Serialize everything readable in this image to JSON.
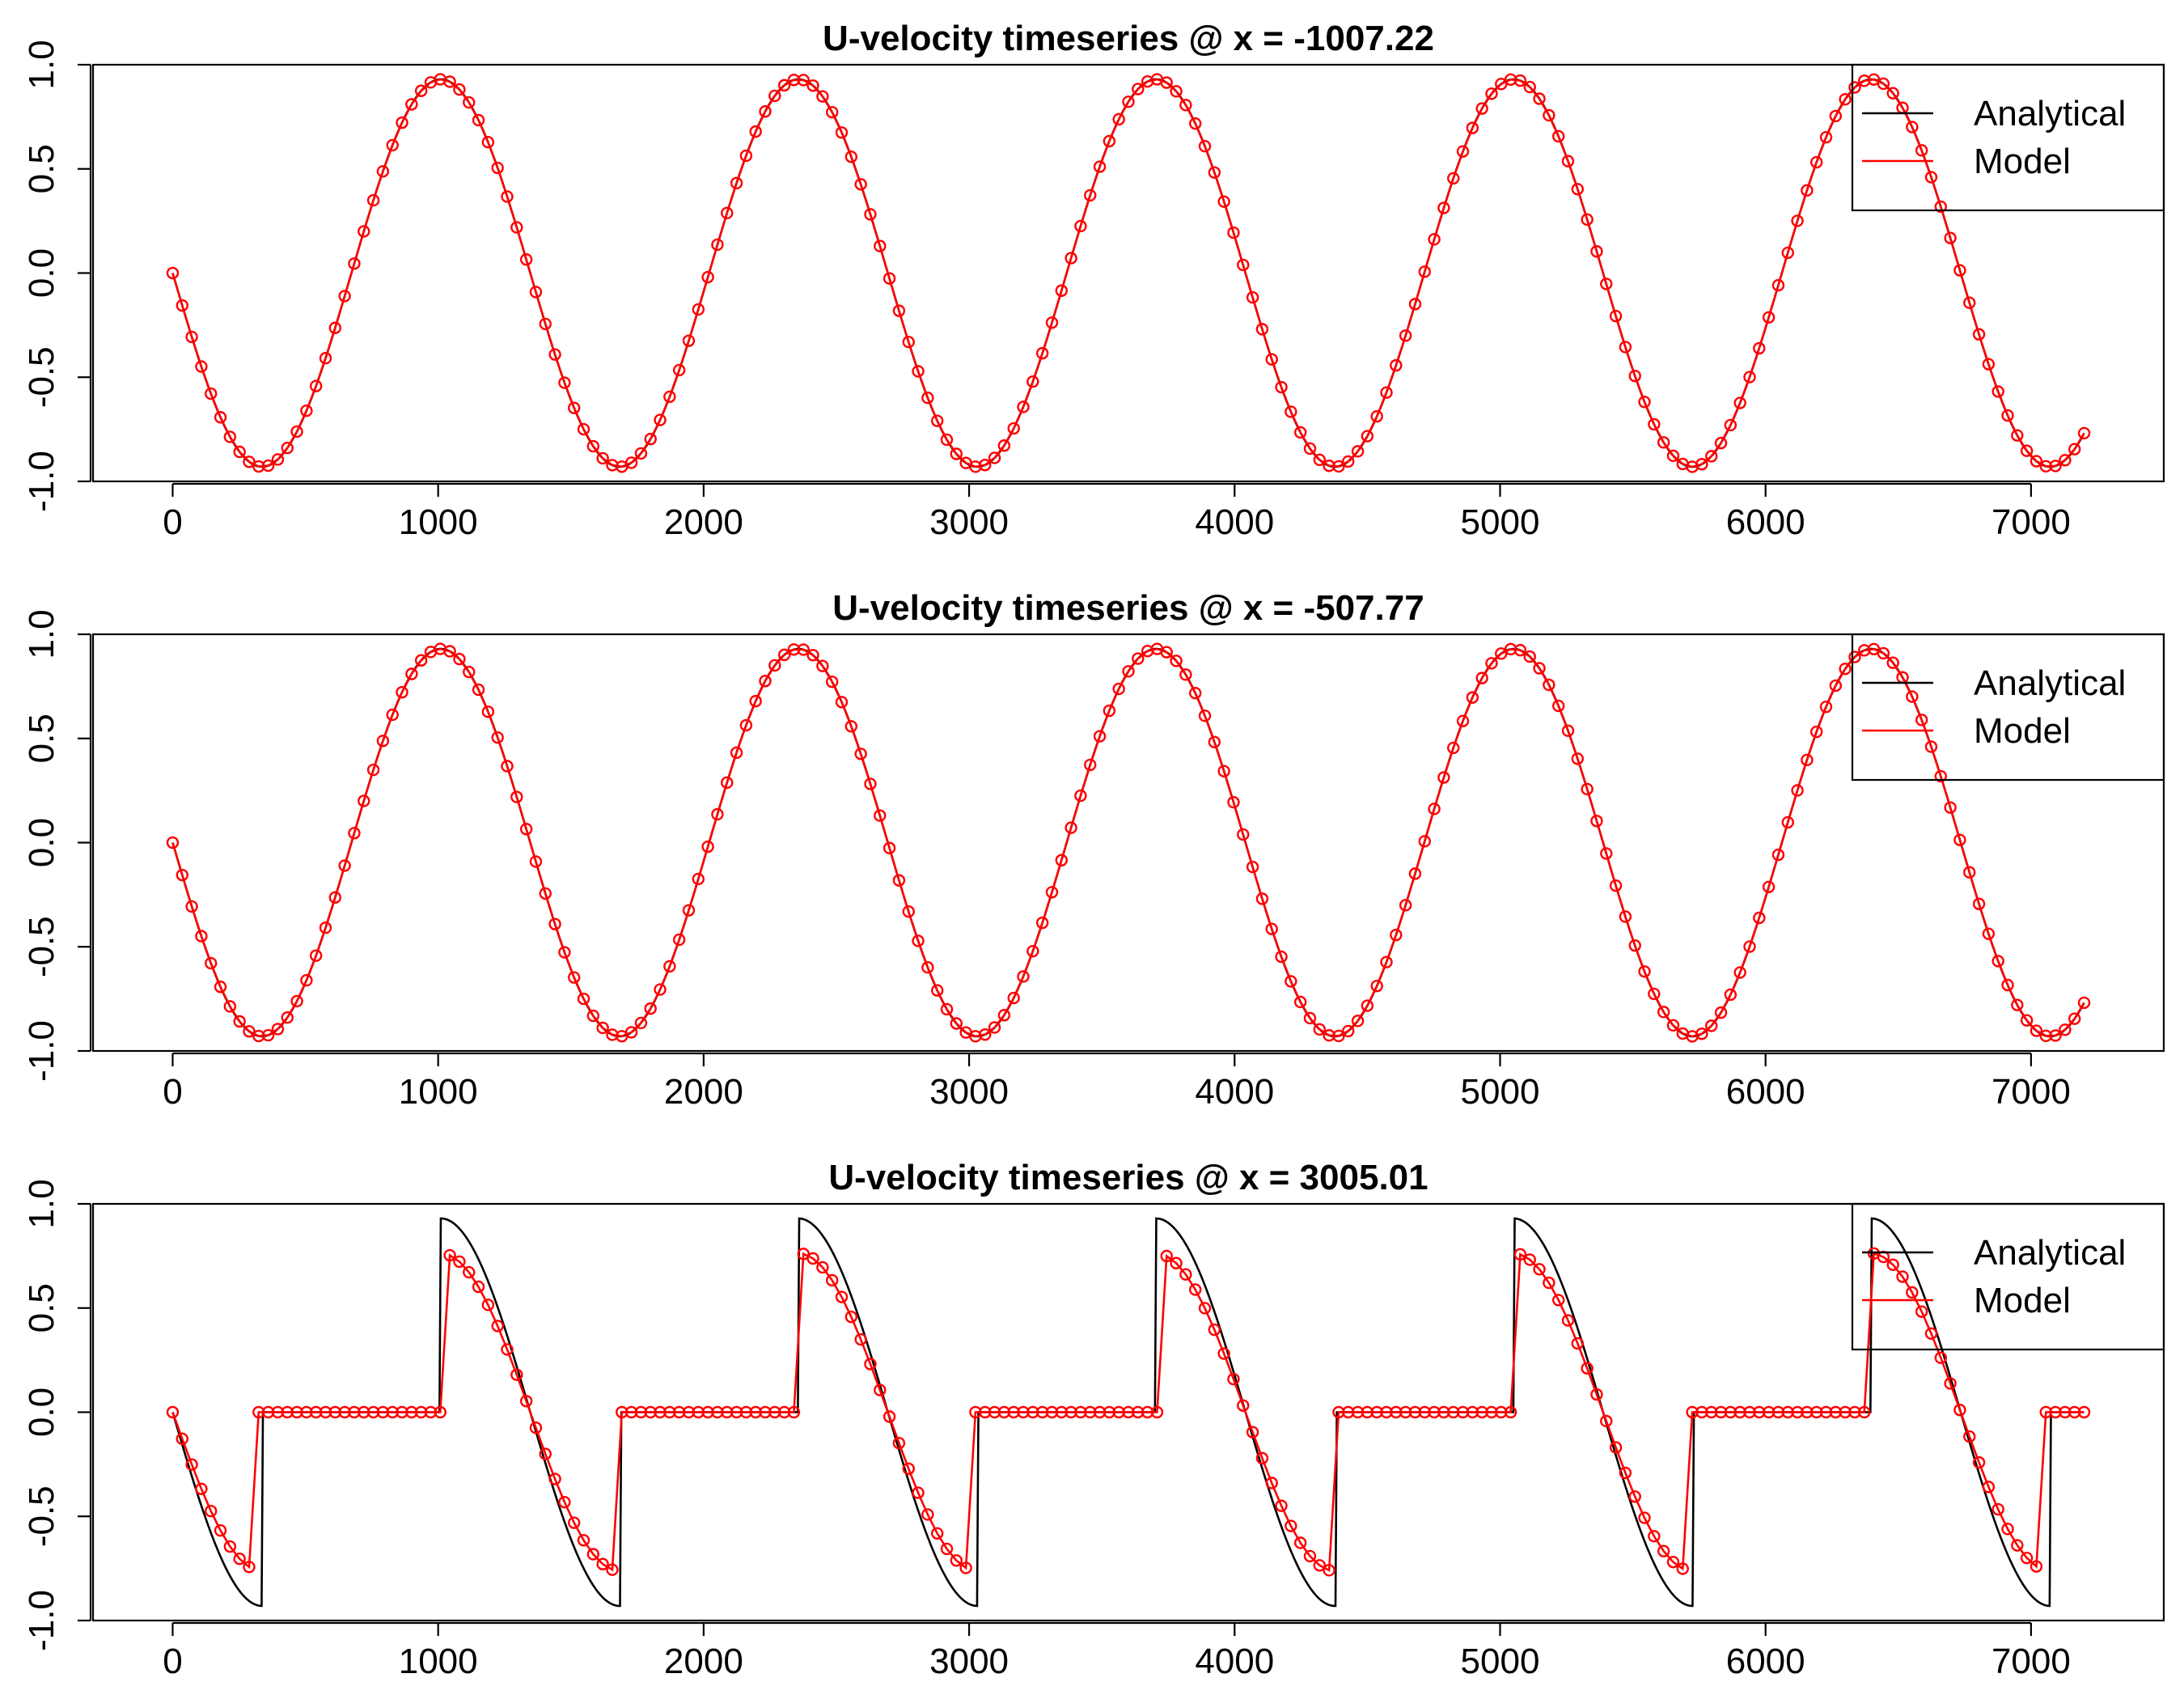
{
  "chart_data": [
    {
      "type": "line",
      "title": "U-velocity timeseries @ x = -1007.22",
      "x_ticks": [
        0,
        1000,
        2000,
        3000,
        4000,
        5000,
        6000,
        7000
      ],
      "y_ticks": [
        -1.0,
        -0.5,
        0.0,
        0.5,
        1.0
      ],
      "x_tick_labels": [
        "0",
        "1000",
        "2000",
        "3000",
        "4000",
        "5000",
        "6000",
        "7000"
      ],
      "y_tick_labels": [
        "-1.0",
        "-0.5",
        "0.0",
        "0.5",
        "1.0"
      ],
      "xlim": [
        -300,
        7500
      ],
      "ylim": [
        -1.0,
        1.0
      ],
      "legend": {
        "position": "top-right",
        "entries": [
          "Analytical",
          "Model"
        ]
      },
      "series": [
        {
          "name": "Analytical",
          "color": "#000000",
          "style": "line",
          "generator": {
            "kind": "sine",
            "amplitude": -0.93,
            "period": 1347,
            "x_start": 0,
            "x_end": 7200,
            "step": 5
          }
        },
        {
          "name": "Model",
          "color": "#ff0000",
          "style": "line+points",
          "generator": {
            "kind": "sine",
            "amplitude": -0.93,
            "period": 1347,
            "x_start": 0,
            "x_end": 7200,
            "step": 36
          }
        }
      ]
    },
    {
      "type": "line",
      "title": "U-velocity timeseries @ x = -507.77",
      "x_ticks": [
        0,
        1000,
        2000,
        3000,
        4000,
        5000,
        6000,
        7000
      ],
      "y_ticks": [
        -1.0,
        -0.5,
        0.0,
        0.5,
        1.0
      ],
      "x_tick_labels": [
        "0",
        "1000",
        "2000",
        "3000",
        "4000",
        "5000",
        "6000",
        "7000"
      ],
      "y_tick_labels": [
        "-1.0",
        "-0.5",
        "0.0",
        "0.5",
        "1.0"
      ],
      "xlim": [
        -300,
        7500
      ],
      "ylim": [
        -1.0,
        1.0
      ],
      "legend": {
        "position": "top-right",
        "entries": [
          "Analytical",
          "Model"
        ]
      },
      "series": [
        {
          "name": "Analytical",
          "color": "#000000",
          "style": "line",
          "generator": {
            "kind": "sine",
            "amplitude": -0.93,
            "period": 1347,
            "x_start": 0,
            "x_end": 7200,
            "step": 5
          }
        },
        {
          "name": "Model",
          "color": "#ff0000",
          "style": "line+points",
          "generator": {
            "kind": "sine",
            "amplitude": -0.93,
            "period": 1347,
            "x_start": 0,
            "x_end": 7200,
            "step": 36
          }
        }
      ]
    },
    {
      "type": "line",
      "title": "U-velocity timeseries @ x = 3005.01",
      "x_ticks": [
        0,
        1000,
        2000,
        3000,
        4000,
        5000,
        6000,
        7000
      ],
      "y_ticks": [
        -1.0,
        -0.5,
        0.0,
        0.5,
        1.0
      ],
      "x_tick_labels": [
        "0",
        "1000",
        "2000",
        "3000",
        "4000",
        "5000",
        "6000",
        "7000"
      ],
      "y_tick_labels": [
        "-1.0",
        "-0.5",
        "0.0",
        "0.5",
        "1.0"
      ],
      "xlim": [
        -300,
        7500
      ],
      "ylim": [
        -1.0,
        1.0
      ],
      "legend": {
        "position": "top-right",
        "entries": [
          "Analytical",
          "Model"
        ]
      },
      "series": [
        {
          "name": "Analytical",
          "color": "#000000",
          "style": "line",
          "generator": {
            "kind": "clipped-sine",
            "amplitude": -0.93,
            "period": 1347,
            "dry_start": 340,
            "dry_end": 1010,
            "x_start": 0,
            "x_end": 7200,
            "step": 5
          }
        },
        {
          "name": "Model",
          "color": "#ff0000",
          "style": "line+points",
          "generator": {
            "kind": "clipped-sine",
            "amplitude": -0.93,
            "period": 1347,
            "damping": 0.82,
            "dry_start": 320,
            "dry_end": 1020,
            "x_start": 0,
            "x_end": 7200,
            "step": 36
          }
        }
      ]
    }
  ]
}
